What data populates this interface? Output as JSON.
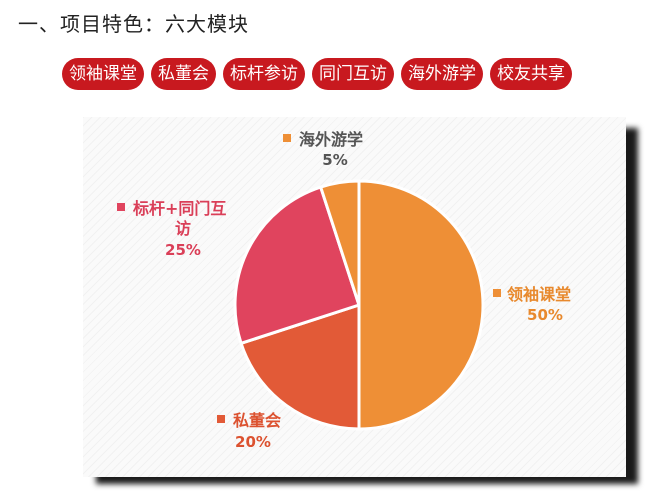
{
  "heading": "一、项目特色：六大模块",
  "modules": [
    "领袖课堂",
    "私董会",
    "标杆参访",
    "同门互访",
    "海外游学",
    "校友共享"
  ],
  "colors": {
    "pill": "#c8191f",
    "orange": "#ee8f36",
    "red_orange": "#e25a37",
    "pink_red": "#e0445e"
  },
  "chart_data": {
    "type": "pie",
    "title": "",
    "slices": [
      {
        "label": "领袖课堂",
        "value": 50,
        "percent_label": "50%",
        "color": "#ee8f36",
        "label_color": "#e8892d"
      },
      {
        "label": "私董会",
        "value": 20,
        "percent_label": "20%",
        "color": "#e25a37",
        "label_color": "#dc5230"
      },
      {
        "label_lines": [
          "标杆+同门互",
          "访"
        ],
        "label": "标杆+同门互访",
        "value": 25,
        "percent_label": "25%",
        "color": "#e0445e",
        "label_color": "#da3f58"
      },
      {
        "label": "海外游学",
        "value": 5,
        "percent_label": "5%",
        "color": "#ee8f36",
        "label_color": "#555555"
      }
    ]
  }
}
